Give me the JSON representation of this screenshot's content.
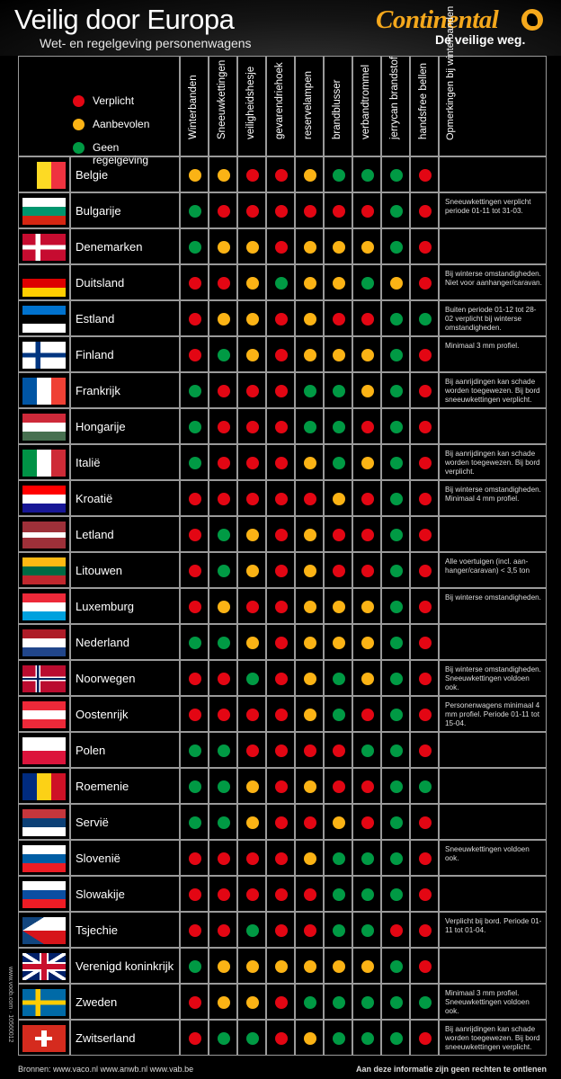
{
  "header": {
    "title": "Veilig door Europa",
    "subtitle": "Wet- en regelgeving personenwagens",
    "brand": "Continental",
    "brand_icon": "horse-emblem-icon",
    "tagline": "De veilige weg."
  },
  "colors": {
    "red": "#e30613",
    "orange": "#fbb315",
    "green": "#009a44",
    "brand": "#f5a81c"
  },
  "legend": [
    {
      "label": "Verplicht",
      "status": "red"
    },
    {
      "label": "Aanbevolen",
      "status": "orange"
    },
    {
      "label": "Geen regelgeving",
      "status": "green"
    }
  ],
  "columns": [
    "Winterbanden",
    "Sneeuwkettingen",
    "veiligheidshesje",
    "gevarendriehoek",
    "reservelampen",
    "brandblusser",
    "verbandtrommel",
    "jerrycan brandstof",
    "handsfree bellen"
  ],
  "remarks_header": "Opmerkingen bij winterbanden",
  "countries": [
    {
      "name": "Belgie",
      "flag": "be",
      "status": [
        "orange",
        "orange",
        "red",
        "red",
        "orange",
        "green",
        "green",
        "green",
        "red"
      ],
      "remark": ""
    },
    {
      "name": "Bulgarije",
      "flag": "bg",
      "status": [
        "green",
        "red",
        "red",
        "red",
        "red",
        "red",
        "red",
        "green",
        "red"
      ],
      "remark": "Sneeuwkettingen verplicht periode 01-11 tot 31-03."
    },
    {
      "name": "Denemarken",
      "flag": "dk",
      "status": [
        "green",
        "orange",
        "orange",
        "red",
        "orange",
        "orange",
        "orange",
        "green",
        "red"
      ],
      "remark": ""
    },
    {
      "name": "Duitsland",
      "flag": "de",
      "status": [
        "red",
        "red",
        "orange",
        "green",
        "orange",
        "orange",
        "green",
        "orange",
        "red"
      ],
      "remark": "Bij winterse omstandigheden. Niet voor aanhanger/caravan."
    },
    {
      "name": "Estland",
      "flag": "ee",
      "status": [
        "red",
        "orange",
        "orange",
        "red",
        "orange",
        "red",
        "red",
        "green",
        "green"
      ],
      "remark": "Buiten periode 01-12 tot 28-02 verplicht bij winterse omstandigheden."
    },
    {
      "name": "Finland",
      "flag": "fi",
      "status": [
        "red",
        "green",
        "orange",
        "red",
        "orange",
        "orange",
        "orange",
        "green",
        "red"
      ],
      "remark": "Minimaal 3 mm profiel."
    },
    {
      "name": "Frankrijk",
      "flag": "fr",
      "status": [
        "green",
        "red",
        "red",
        "red",
        "green",
        "green",
        "orange",
        "green",
        "red"
      ],
      "remark": "Bij aanrijdingen kan schade worden toegewezen. Bij bord sneeuwkettingen verplicht."
    },
    {
      "name": "Hongarije",
      "flag": "hu",
      "status": [
        "green",
        "red",
        "red",
        "red",
        "green",
        "green",
        "red",
        "green",
        "red"
      ],
      "remark": ""
    },
    {
      "name": "Italië",
      "flag": "it",
      "status": [
        "green",
        "red",
        "red",
        "red",
        "orange",
        "green",
        "orange",
        "green",
        "red"
      ],
      "remark": "Bij aanrijdingen kan schade worden toegewezen. Bij bord verplicht."
    },
    {
      "name": "Kroatië",
      "flag": "hr",
      "status": [
        "red",
        "red",
        "red",
        "red",
        "red",
        "orange",
        "red",
        "green",
        "red"
      ],
      "remark": "Bij winterse omstandigheden. Minimaal 4 mm profiel."
    },
    {
      "name": "Letland",
      "flag": "lv",
      "status": [
        "red",
        "green",
        "orange",
        "red",
        "orange",
        "red",
        "red",
        "green",
        "red"
      ],
      "remark": ""
    },
    {
      "name": "Litouwen",
      "flag": "lt",
      "status": [
        "red",
        "green",
        "orange",
        "red",
        "orange",
        "red",
        "red",
        "green",
        "red"
      ],
      "remark": "Alle voertuigen (incl. aan-hanger/caravan) < 3,5 ton"
    },
    {
      "name": "Luxemburg",
      "flag": "lu",
      "status": [
        "red",
        "orange",
        "red",
        "red",
        "orange",
        "orange",
        "orange",
        "green",
        "red"
      ],
      "remark": "Bij winterse omstandigheden."
    },
    {
      "name": "Nederland",
      "flag": "nl",
      "status": [
        "green",
        "green",
        "orange",
        "red",
        "orange",
        "orange",
        "orange",
        "green",
        "red"
      ],
      "remark": ""
    },
    {
      "name": "Noorwegen",
      "flag": "no",
      "status": [
        "red",
        "red",
        "green",
        "red",
        "orange",
        "green",
        "orange",
        "green",
        "red"
      ],
      "remark": "Bij winterse omstandigheden. Sneeuwkettingen voldoen ook."
    },
    {
      "name": "Oostenrijk",
      "flag": "at",
      "status": [
        "red",
        "red",
        "red",
        "red",
        "orange",
        "green",
        "red",
        "green",
        "red"
      ],
      "remark": "Personenwagens minimaal 4 mm profiel. Periode 01-11 tot 15-04."
    },
    {
      "name": "Polen",
      "flag": "pl",
      "status": [
        "green",
        "green",
        "red",
        "red",
        "red",
        "red",
        "green",
        "green",
        "red"
      ],
      "remark": ""
    },
    {
      "name": "Roemenie",
      "flag": "ro",
      "status": [
        "green",
        "green",
        "orange",
        "red",
        "orange",
        "red",
        "red",
        "green",
        "green"
      ],
      "remark": ""
    },
    {
      "name": "Servië",
      "flag": "rs",
      "status": [
        "green",
        "green",
        "orange",
        "red",
        "red",
        "orange",
        "red",
        "green",
        "red"
      ],
      "remark": ""
    },
    {
      "name": "Slovenië",
      "flag": "si",
      "status": [
        "red",
        "red",
        "red",
        "red",
        "orange",
        "green",
        "green",
        "green",
        "red"
      ],
      "remark": "Sneeuwkettingen voldoen ook."
    },
    {
      "name": "Slowakije",
      "flag": "sk",
      "status": [
        "red",
        "red",
        "red",
        "red",
        "red",
        "green",
        "green",
        "green",
        "red"
      ],
      "remark": ""
    },
    {
      "name": "Tsjechie",
      "flag": "cz",
      "status": [
        "red",
        "red",
        "green",
        "red",
        "red",
        "green",
        "green",
        "red",
        "red"
      ],
      "remark": "Verplicht bij bord. Periode 01-11 tot 01-04."
    },
    {
      "name": "Verenigd koninkrijk",
      "flag": "gb",
      "status": [
        "green",
        "orange",
        "orange",
        "orange",
        "orange",
        "orange",
        "orange",
        "green",
        "red"
      ],
      "remark": ""
    },
    {
      "name": "Zweden",
      "flag": "se",
      "status": [
        "red",
        "orange",
        "orange",
        "red",
        "green",
        "green",
        "green",
        "green",
        "green"
      ],
      "remark": "Minimaal 3 mm profiel. Sneeuwkettingen voldoen ook."
    },
    {
      "name": "Zwitserland",
      "flag": "ch",
      "status": [
        "red",
        "green",
        "green",
        "red",
        "orange",
        "green",
        "green",
        "green",
        "red"
      ],
      "remark": "Bij aanrijdingen kan schade worden toegewezen. Bij bord sneeuwkettingen verplicht."
    }
  ],
  "side_text": "www.voob.com · 10560012",
  "footer": {
    "sources": "Bronnen: www.vaco.nl  www.anwb.nl  www.vab.be",
    "disclaimer": "Aan deze informatie zijn geen rechten te ontlenen"
  }
}
